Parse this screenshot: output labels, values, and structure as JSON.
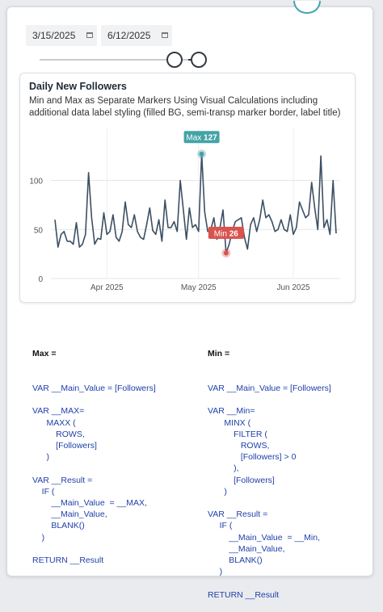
{
  "date_range": {
    "start": "3/15/2025",
    "end": "6/12/2025",
    "start_icon": "calendar-icon",
    "end_icon": "calendar-icon"
  },
  "slider": {
    "low": 0.88,
    "high": 1.0
  },
  "colors": {
    "line": "#3c4f63",
    "max_marker": "#44a3a6",
    "min_marker": "#d9534f",
    "code_keyword": "#1f3fa8"
  },
  "chart_data": {
    "type": "line",
    "title": "Daily New Followers",
    "subtitle": "Min and Max as Separate Markers Using Visual Calculations including additional data label styling (filled BG, semi-transp marker border, label title)",
    "x_start": "2025-03-15",
    "x_ticks": [
      "Apr 2025",
      "May 2025",
      "Jun 2025"
    ],
    "y_ticks": [
      "0",
      "50",
      "100"
    ],
    "ylim": [
      0,
      135
    ],
    "grid": true,
    "values": [
      60,
      32,
      45,
      48,
      38,
      38,
      35,
      57,
      32,
      35,
      45,
      108,
      62,
      35,
      41,
      40,
      67,
      45,
      48,
      65,
      42,
      38,
      48,
      78,
      55,
      52,
      65,
      48,
      42,
      40,
      55,
      72,
      49,
      45,
      60,
      38,
      80,
      52,
      52,
      58,
      48,
      100,
      70,
      40,
      72,
      52,
      55,
      48,
      127,
      68,
      48,
      50,
      62,
      40,
      52,
      70,
      26,
      35,
      48,
      58,
      60,
      62,
      42,
      30,
      55,
      62,
      48,
      60,
      80,
      62,
      65,
      58,
      48,
      50,
      60,
      50,
      48,
      65,
      45,
      52,
      78,
      70,
      62,
      65,
      98,
      72,
      50,
      125,
      52,
      60,
      45,
      100,
      46
    ],
    "max": {
      "label_title": "Max",
      "value": "127",
      "index": 48
    },
    "min": {
      "label_title": "Min",
      "value": "26",
      "index": 56
    }
  },
  "code": {
    "max": {
      "heading": "Max =",
      "lines": [
        "VAR __Main_Value = [Followers]",
        "",
        "VAR __MAX=",
        "      MAXX (",
        "          ROWS,",
        "          [Followers]",
        "      )",
        "",
        "VAR __Result =",
        "    IF (",
        "        __Main_Value  = __MAX,",
        "        __Main_Value,",
        "        BLANK()",
        "    )",
        "",
        "RETURN __Result"
      ]
    },
    "min": {
      "heading": "Min =",
      "lines": [
        "VAR __Main_Value = [Followers]",
        "",
        "VAR __Min=",
        "       MINX (",
        "           FILTER (",
        "              ROWS,",
        "              [Followers] > 0",
        "           ),",
        "           [Followers]",
        "       )",
        "",
        "VAR __Result =",
        "     IF (",
        "         __Main_Value  = __Min,",
        "         __Main_Value,",
        "         BLANK()",
        "     )",
        "",
        "RETURN __Result"
      ]
    }
  }
}
